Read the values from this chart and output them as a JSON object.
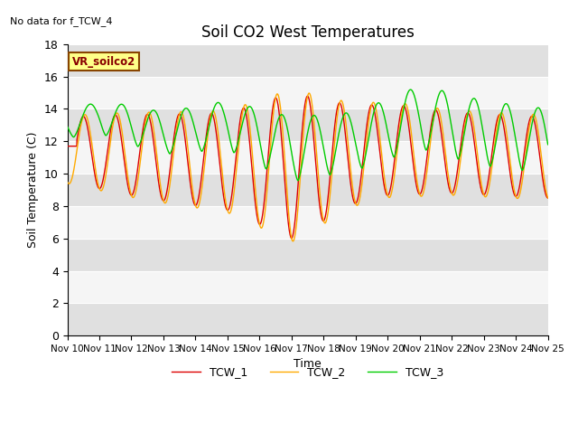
{
  "title": "Soil CO2 West Temperatures",
  "xlabel": "Time",
  "ylabel": "Soil Temperature (C)",
  "no_data_label": "No data for f_TCW_4",
  "vr_label": "VR_soilco2",
  "ylim": [
    0,
    18
  ],
  "yticks": [
    0,
    2,
    4,
    6,
    8,
    10,
    12,
    14,
    16,
    18
  ],
  "xtick_labels": [
    "Nov 10",
    "Nov 11",
    "Nov 12",
    "Nov 13",
    "Nov 14",
    "Nov 15",
    "Nov 16",
    "Nov 17",
    "Nov 18",
    "Nov 19",
    "Nov 20",
    "Nov 21",
    "Nov 22",
    "Nov 23",
    "Nov 24",
    "Nov 25"
  ],
  "xtick_positions": [
    0,
    1,
    2,
    3,
    4,
    5,
    6,
    7,
    8,
    9,
    10,
    11,
    12,
    13,
    14,
    15
  ],
  "line_colors": [
    "#dd0000",
    "#ffaa00",
    "#00cc00"
  ],
  "line_labels": [
    "TCW_1",
    "TCW_2",
    "TCW_3"
  ],
  "bg_band_color": "#e0e0e0",
  "plot_bg_color": "#f5f5f5",
  "legend_bg_color": "#ffff88",
  "legend_edge_color": "#884400",
  "n_points": 3000
}
